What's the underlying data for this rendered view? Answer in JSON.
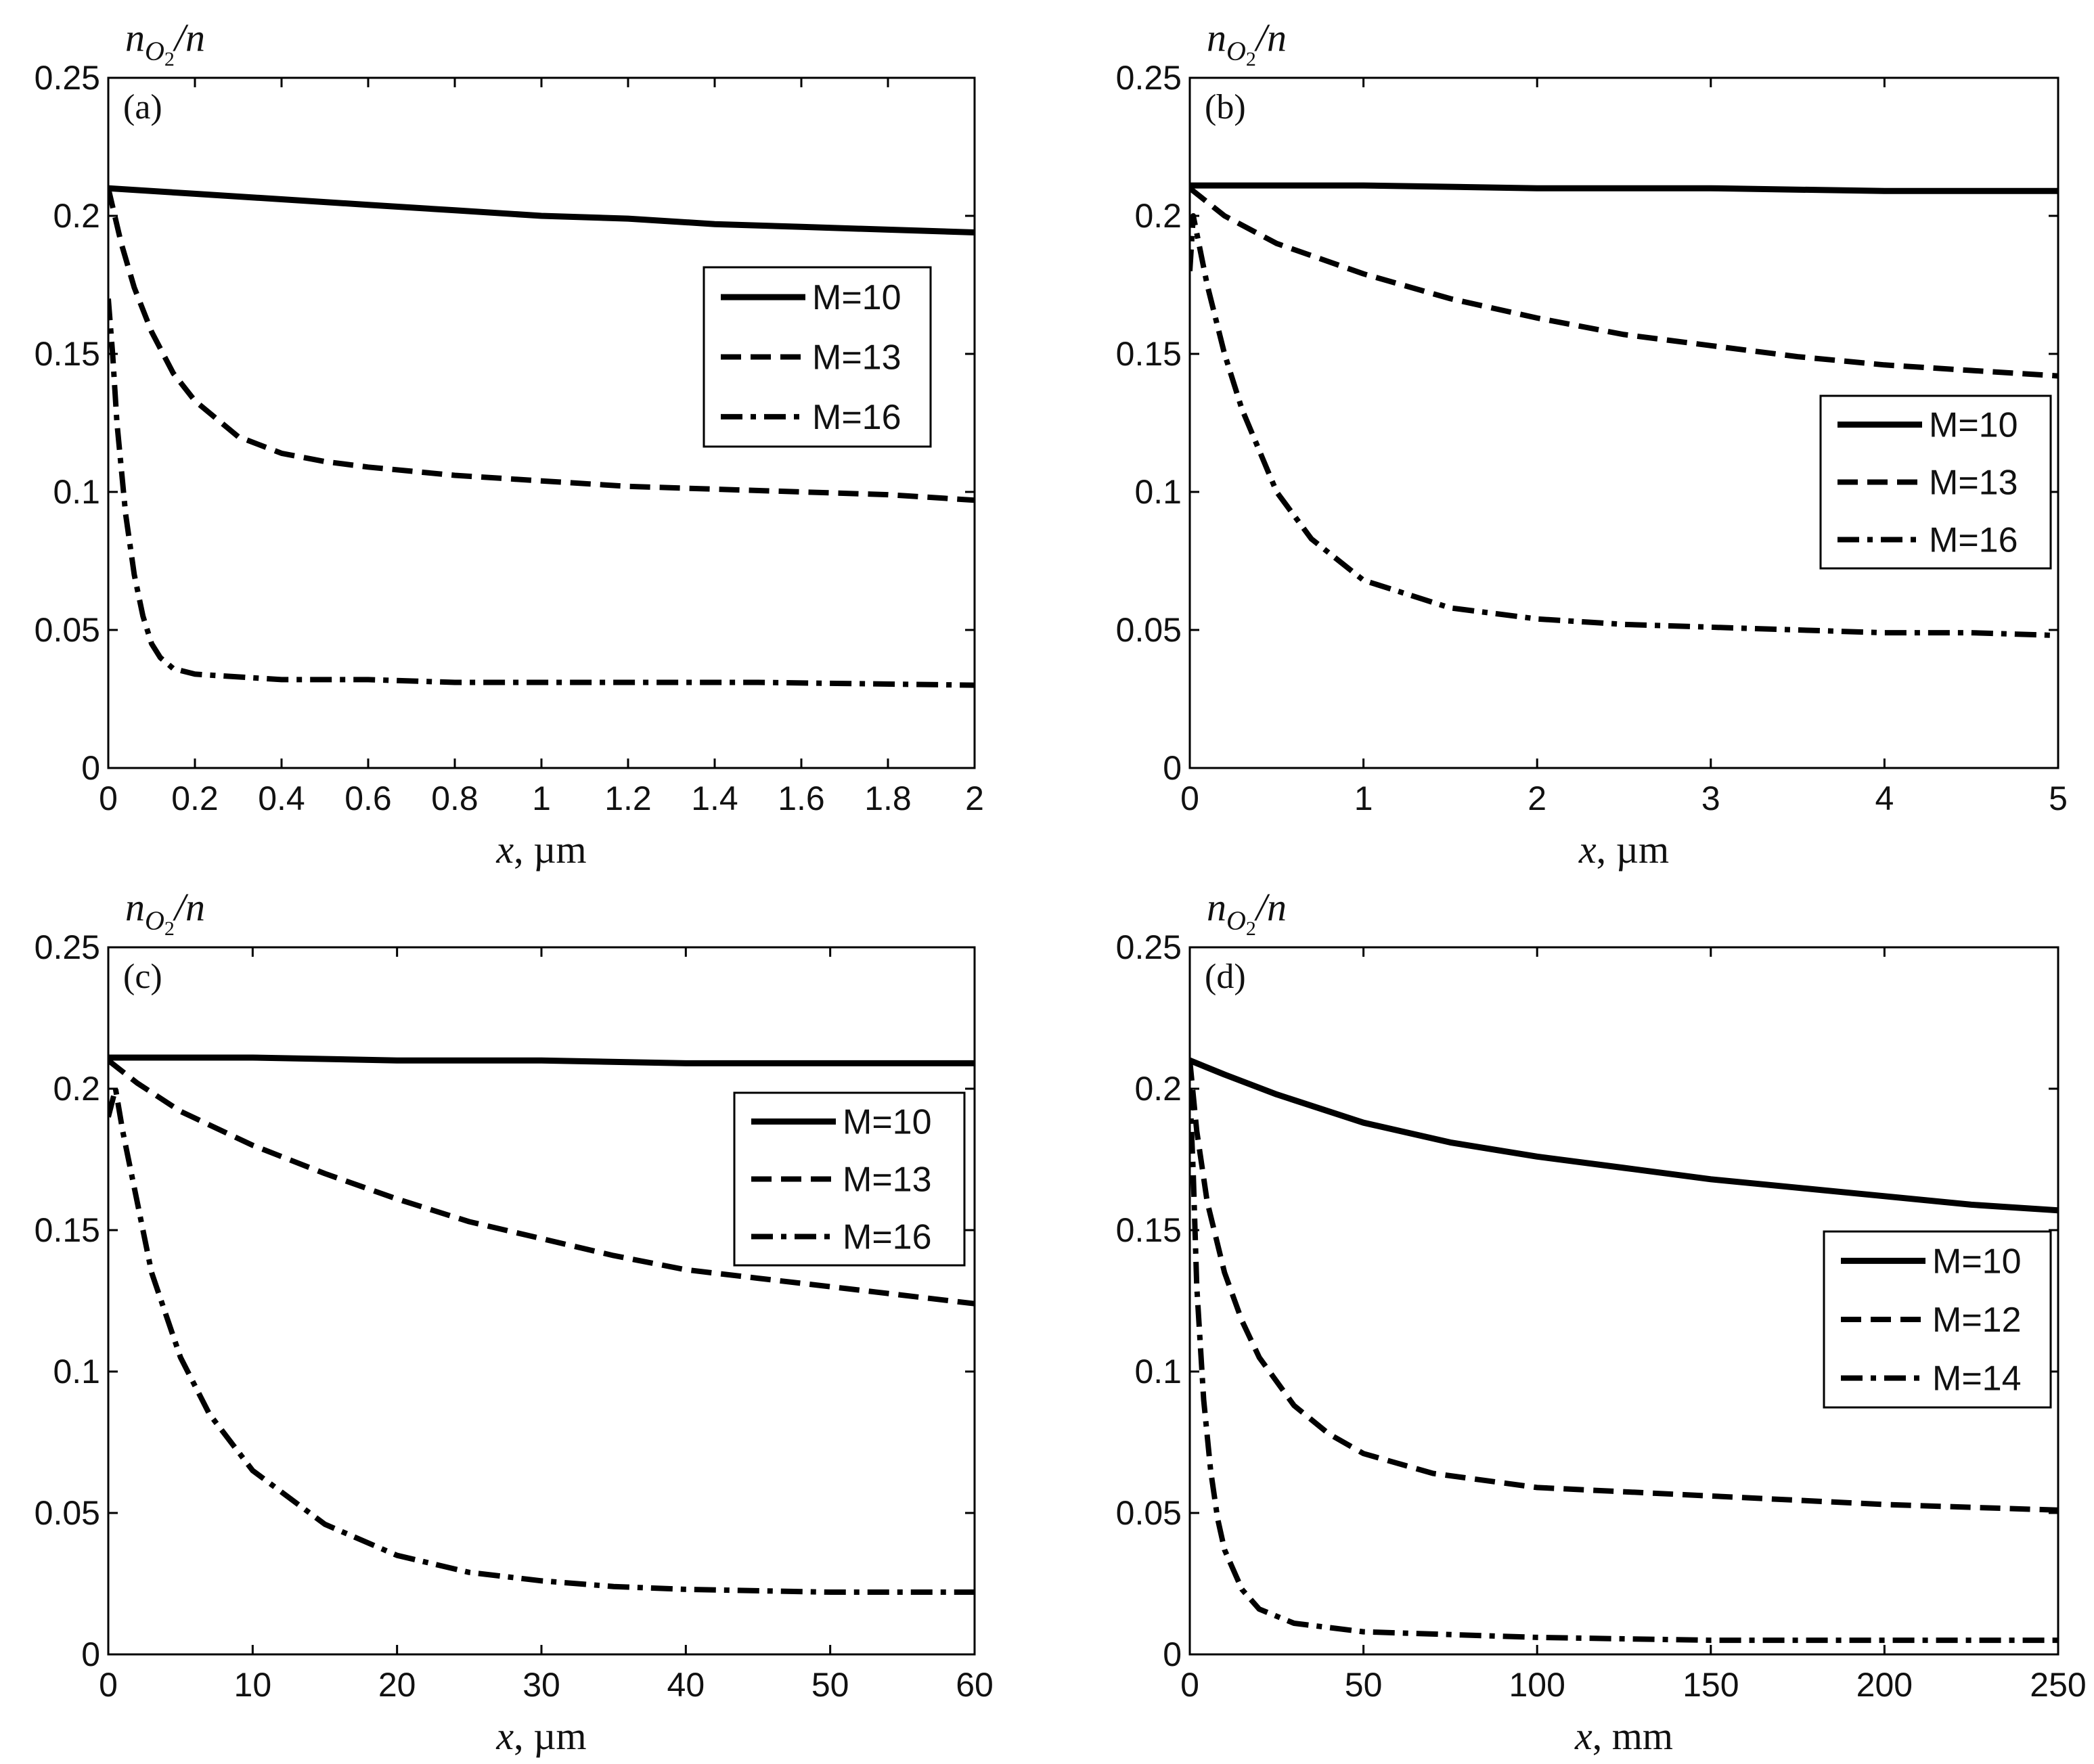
{
  "chart_data": [
    {
      "type": "line",
      "panel_label": "(a)",
      "ylabel_main": "n",
      "ylabel_sub": "O",
      "ylabel_subsub": "2",
      "ylabel_tail": "/n",
      "xlabel_var": "x",
      "xlabel_unit": ", µm",
      "xlim": [
        0,
        2
      ],
      "ylim": [
        0,
        0.25
      ],
      "xticks": [
        0,
        0.2,
        0.4,
        0.6,
        0.8,
        1,
        1.2,
        1.4,
        1.6,
        1.8,
        2
      ],
      "xtick_labels": [
        "0",
        "0.2",
        "0.4",
        "0.6",
        "0.8",
        "1",
        "1.2",
        "1.4",
        "1.6",
        "1.8",
        "2"
      ],
      "yticks": [
        0,
        0.05,
        0.1,
        0.15,
        0.2,
        0.25
      ],
      "ytick_labels": [
        "0",
        "0.05",
        "0.1",
        "0.15",
        "0.2",
        "0.25"
      ],
      "legend_position": "middle-right",
      "series": [
        {
          "name": "M=10",
          "style": "solid",
          "x": [
            0,
            0.2,
            0.4,
            0.6,
            0.8,
            1.0,
            1.2,
            1.4,
            1.6,
            1.8,
            2.0
          ],
          "y": [
            0.21,
            0.208,
            0.206,
            0.204,
            0.202,
            0.2,
            0.199,
            0.197,
            0.196,
            0.195,
            0.194
          ]
        },
        {
          "name": "M=13",
          "style": "dashed",
          "x": [
            0,
            0.03,
            0.06,
            0.1,
            0.15,
            0.2,
            0.3,
            0.4,
            0.5,
            0.6,
            0.8,
            1.0,
            1.2,
            1.4,
            1.6,
            1.8,
            2.0
          ],
          "y": [
            0.21,
            0.19,
            0.174,
            0.158,
            0.143,
            0.133,
            0.12,
            0.114,
            0.111,
            0.109,
            0.106,
            0.104,
            0.102,
            0.101,
            0.1,
            0.099,
            0.097
          ]
        },
        {
          "name": "M=16",
          "style": "dashdot",
          "x": [
            0,
            0.01,
            0.02,
            0.04,
            0.06,
            0.08,
            0.1,
            0.12,
            0.15,
            0.2,
            0.3,
            0.4,
            0.6,
            0.8,
            1.0,
            1.5,
            2.0
          ],
          "y": [
            0.17,
            0.15,
            0.125,
            0.092,
            0.07,
            0.055,
            0.045,
            0.04,
            0.036,
            0.034,
            0.033,
            0.032,
            0.032,
            0.031,
            0.031,
            0.031,
            0.03
          ]
        }
      ]
    },
    {
      "type": "line",
      "panel_label": "(b)",
      "ylabel_main": "n",
      "ylabel_sub": "O",
      "ylabel_subsub": "2",
      "ylabel_tail": "/n",
      "xlabel_var": "x",
      "xlabel_unit": ", µm",
      "xlim": [
        0,
        5
      ],
      "ylim": [
        0,
        0.25
      ],
      "xticks": [
        0,
        1,
        2,
        3,
        4,
        5
      ],
      "xtick_labels": [
        "0",
        "1",
        "2",
        "3",
        "4",
        "5"
      ],
      "yticks": [
        0,
        0.05,
        0.1,
        0.15,
        0.2,
        0.25
      ],
      "ytick_labels": [
        "0",
        "0.05",
        "0.1",
        "0.15",
        "0.2",
        "0.25"
      ],
      "legend_position": "middle-right",
      "series": [
        {
          "name": "M=10",
          "style": "solid",
          "x": [
            0,
            1,
            2,
            3,
            4,
            5
          ],
          "y": [
            0.211,
            0.211,
            0.21,
            0.21,
            0.209,
            0.209
          ]
        },
        {
          "name": "M=13",
          "style": "dashed",
          "x": [
            0,
            0.2,
            0.5,
            1.0,
            1.5,
            2.0,
            2.5,
            3.0,
            3.5,
            4.0,
            4.5,
            5.0
          ],
          "y": [
            0.21,
            0.2,
            0.19,
            0.179,
            0.17,
            0.163,
            0.157,
            0.153,
            0.149,
            0.146,
            0.144,
            0.142
          ]
        },
        {
          "name": "M=16",
          "style": "dashdot",
          "x": [
            0,
            0.02,
            0.1,
            0.2,
            0.3,
            0.5,
            0.7,
            1.0,
            1.5,
            2.0,
            2.5,
            3.0,
            3.5,
            4.0,
            4.5,
            5.0
          ],
          "y": [
            0.18,
            0.2,
            0.175,
            0.15,
            0.13,
            0.1,
            0.083,
            0.068,
            0.058,
            0.054,
            0.052,
            0.051,
            0.05,
            0.049,
            0.049,
            0.048
          ]
        }
      ]
    },
    {
      "type": "line",
      "panel_label": "(c)",
      "ylabel_main": "n",
      "ylabel_sub": "O",
      "ylabel_subsub": "2",
      "ylabel_tail": "/n",
      "xlabel_var": "x",
      "xlabel_unit": ", µm",
      "xlim": [
        0,
        60
      ],
      "ylim": [
        0,
        0.25
      ],
      "xticks": [
        0,
        10,
        20,
        30,
        40,
        50,
        60
      ],
      "xtick_labels": [
        "0",
        "10",
        "20",
        "30",
        "40",
        "50",
        "60"
      ],
      "yticks": [
        0,
        0.05,
        0.1,
        0.15,
        0.2,
        0.25
      ],
      "ytick_labels": [
        "0",
        "0.05",
        "0.1",
        "0.15",
        "0.2",
        "0.25"
      ],
      "legend_position": "middle-right",
      "series": [
        {
          "name": "M=10",
          "style": "solid",
          "x": [
            0,
            10,
            20,
            30,
            40,
            50,
            60
          ],
          "y": [
            0.211,
            0.211,
            0.21,
            0.21,
            0.209,
            0.209,
            0.209
          ]
        },
        {
          "name": "M=13",
          "style": "dashed",
          "x": [
            0,
            2,
            5,
            10,
            15,
            20,
            25,
            30,
            35,
            40,
            45,
            50,
            55,
            60
          ],
          "y": [
            0.21,
            0.202,
            0.192,
            0.18,
            0.17,
            0.161,
            0.153,
            0.147,
            0.141,
            0.136,
            0.133,
            0.13,
            0.127,
            0.124
          ]
        },
        {
          "name": "M=16",
          "style": "dashdot",
          "x": [
            0,
            0.5,
            1,
            2,
            3,
            4,
            5,
            7,
            10,
            15,
            20,
            25,
            30,
            35,
            40,
            50,
            60
          ],
          "y": [
            0.19,
            0.2,
            0.185,
            0.16,
            0.135,
            0.12,
            0.105,
            0.085,
            0.065,
            0.046,
            0.035,
            0.029,
            0.026,
            0.024,
            0.023,
            0.022,
            0.022
          ]
        }
      ]
    },
    {
      "type": "line",
      "panel_label": "(d)",
      "ylabel_main": "n",
      "ylabel_sub": "O",
      "ylabel_subsub": "2",
      "ylabel_tail": "/n",
      "xlabel_var": "x",
      "xlabel_unit": ", mm",
      "xlim": [
        0,
        250
      ],
      "ylim": [
        0,
        0.25
      ],
      "xticks": [
        0,
        50,
        100,
        150,
        200,
        250
      ],
      "xtick_labels": [
        "0",
        "50",
        "100",
        "150",
        "200",
        "250"
      ],
      "yticks": [
        0,
        0.05,
        0.1,
        0.15,
        0.2,
        0.25
      ],
      "ytick_labels": [
        "0",
        "0.05",
        "0.1",
        "0.15",
        "0.2",
        "0.25"
      ],
      "legend_position": "lower-right",
      "series": [
        {
          "name": "M=10",
          "style": "solid",
          "x": [
            0,
            10,
            25,
            50,
            75,
            100,
            125,
            150,
            175,
            200,
            225,
            250
          ],
          "y": [
            0.21,
            0.205,
            0.198,
            0.188,
            0.181,
            0.176,
            0.172,
            0.168,
            0.165,
            0.162,
            0.159,
            0.157
          ]
        },
        {
          "name": "M=12",
          "style": "dashed",
          "x": [
            0,
            2,
            5,
            10,
            15,
            20,
            30,
            40,
            50,
            70,
            100,
            150,
            200,
            250
          ],
          "y": [
            0.21,
            0.185,
            0.16,
            0.135,
            0.118,
            0.105,
            0.088,
            0.078,
            0.071,
            0.064,
            0.059,
            0.056,
            0.053,
            0.051
          ]
        },
        {
          "name": "M=14",
          "style": "dashdot",
          "x": [
            0,
            1,
            2,
            4,
            6,
            8,
            10,
            15,
            20,
            30,
            50,
            100,
            150,
            200,
            250
          ],
          "y": [
            0.2,
            0.17,
            0.13,
            0.09,
            0.065,
            0.048,
            0.037,
            0.023,
            0.016,
            0.011,
            0.008,
            0.006,
            0.005,
            0.005,
            0.005
          ]
        }
      ]
    }
  ]
}
